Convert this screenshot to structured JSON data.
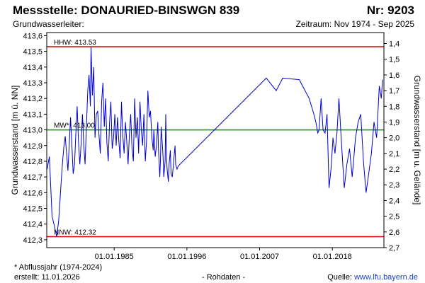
{
  "header": {
    "station": "Messstelle: DONAURIED-BINSWGN 839",
    "number": "Nr: 9203",
    "aquifer": "Grundwasserleiter:",
    "period": "Zeitraum: Nov 1974 - Sep 2025"
  },
  "footer": {
    "note": "* Abflussjahr (1974-2024)",
    "created": "erstellt:  11.01.2026",
    "raw": "- Rohdaten -",
    "source_label": "Quelle: ",
    "source_link": "www.lfu.bayern.de"
  },
  "colors": {
    "series": "#0000d0",
    "hhw": "#e00000",
    "nnw": "#e00000",
    "mw": "#009900",
    "grid": "#999999"
  },
  "chart_data": {
    "type": "line",
    "xlabel": "",
    "ylabel": "Grundwasserstand [m ü. NN]",
    "ylabel_right": "Grundwasserstand [m u. Gelände]",
    "xlim": [
      1974.8,
      2025.8
    ],
    "ylim": [
      412.25,
      413.62
    ],
    "ylim_right": [
      2.7,
      1.33
    ],
    "y_ticks": [
      "412,3",
      "412,4",
      "412,5",
      "412,6",
      "412,7",
      "412,8",
      "412,9",
      "413,0",
      "413,1",
      "413,2",
      "413,3",
      "413,4",
      "413,5",
      "413,6"
    ],
    "y_right_ticks": [
      "1,4",
      "1,5",
      "1,6",
      "1,7",
      "1,8",
      "1,9",
      "2,0",
      "2,1",
      "2,2",
      "2,3",
      "2,4",
      "2,5",
      "2,6",
      "2,7"
    ],
    "x_ticks": [
      {
        "label": "01.01.1985",
        "value": 1985.0
      },
      {
        "label": "01.01.1996",
        "value": 1996.0
      },
      {
        "label": "01.01.2007",
        "value": 2007.0
      },
      {
        "label": "01.01.2018",
        "value": 2018.0
      }
    ],
    "grid": false,
    "reference_lines": [
      {
        "label": "HHW: 413.53",
        "value": 413.53,
        "color_key": "hhw"
      },
      {
        "label": "MW*: 413.00",
        "value": 413.0,
        "color_key": "mw"
      },
      {
        "label": "NNW: 412.32",
        "value": 412.32,
        "color_key": "nnw"
      }
    ],
    "series": [
      {
        "x": [
          1974.85,
          1975.2,
          1975.6,
          1976.0,
          1976.3,
          1976.6,
          1976.8,
          1977.0,
          1977.2,
          1977.4,
          1977.6,
          1977.8,
          1978.0,
          1978.2,
          1978.4,
          1978.6,
          1978.8,
          1979.0,
          1979.2,
          1979.4,
          1979.6,
          1979.8,
          1980.0,
          1980.2,
          1980.4,
          1980.6,
          1980.8,
          1981.0,
          1981.2,
          1981.4,
          1981.5,
          1981.7,
          1981.9,
          1982.1,
          1982.3,
          1982.5,
          1982.7,
          1982.9,
          1983.1,
          1983.3,
          1983.5,
          1983.7,
          1983.9,
          1984.1,
          1984.3,
          1984.5,
          1984.7,
          1984.9,
          1985.1,
          1985.3,
          1985.5,
          1985.7,
          1985.9,
          1986.1,
          1986.3,
          1986.5,
          1986.7,
          1986.9,
          1987.1,
          1987.3,
          1987.5,
          1987.7,
          1987.9,
          1988.1,
          1988.3,
          1988.5,
          1988.7,
          1988.9,
          1989.1,
          1989.3,
          1989.5,
          1989.7,
          1989.9,
          1990.1,
          1990.3,
          1990.5,
          1990.7,
          1990.9,
          1991.0,
          1991.2,
          1991.4,
          1991.6,
          1991.7,
          1991.9,
          1992.0,
          1992.1,
          1992.3,
          1992.4,
          1992.5,
          1992.7,
          1992.8,
          1992.9,
          1993.0,
          1993.2,
          1993.3,
          1993.5,
          1993.6,
          1993.8,
          1994.0,
          1994.2,
          1994.3,
          1994.5,
          1994.7,
          2008.0,
          2009.5,
          2010.5,
          2013.0,
          2014.5,
          2015.2,
          2015.5,
          2015.8,
          2016.0,
          2016.3,
          2016.6,
          2016.9,
          2017.2,
          2017.5,
          2017.8,
          2018.1,
          2018.4,
          2018.7,
          2019.0,
          2019.4,
          2019.8,
          2020.2,
          2020.6,
          2021.0,
          2021.5,
          2021.9,
          2022.3,
          2022.7,
          2023.1,
          2023.5,
          2023.9,
          2024.3,
          2024.7,
          2025.1,
          2025.4,
          2025.6
        ],
        "y": [
          412.75,
          412.83,
          412.45,
          412.38,
          412.32,
          412.42,
          412.55,
          412.68,
          412.8,
          412.9,
          412.96,
          412.85,
          412.74,
          412.9,
          413.08,
          412.9,
          412.72,
          412.78,
          412.98,
          413.15,
          412.93,
          412.78,
          412.91,
          413.1,
          412.9,
          412.78,
          413.02,
          413.25,
          413.35,
          413.15,
          413.53,
          413.22,
          413.4,
          412.95,
          413.1,
          413.12,
          412.97,
          412.85,
          413.18,
          413.3,
          413.02,
          413.2,
          412.92,
          412.8,
          413.05,
          413.18,
          412.88,
          412.95,
          413.1,
          412.9,
          413.08,
          412.93,
          412.82,
          413.18,
          412.97,
          412.85,
          413.05,
          412.93,
          412.78,
          412.97,
          413.1,
          412.88,
          412.8,
          413.2,
          412.95,
          413.08,
          412.85,
          413.18,
          413.0,
          412.9,
          413.1,
          412.8,
          412.93,
          413.25,
          413.08,
          413.12,
          412.95,
          412.87,
          413.0,
          412.83,
          412.9,
          413.05,
          412.88,
          412.7,
          412.8,
          413.02,
          412.9,
          412.82,
          412.7,
          412.8,
          413.1,
          412.85,
          412.75,
          412.67,
          412.78,
          412.87,
          412.72,
          412.7,
          412.8,
          412.9,
          412.78,
          412.75,
          412.77,
          413.33,
          413.25,
          413.33,
          413.32,
          413.2,
          413.1,
          413.05,
          412.98,
          413.0,
          413.2,
          413.0,
          412.98,
          413.1,
          412.63,
          412.75,
          412.95,
          412.85,
          412.98,
          413.2,
          412.9,
          412.63,
          412.78,
          412.88,
          412.7,
          412.95,
          413.05,
          413.1,
          412.8,
          412.6,
          412.72,
          412.85,
          413.05,
          412.95,
          413.28,
          413.2,
          413.32
        ],
        "color_key": "series"
      }
    ]
  }
}
